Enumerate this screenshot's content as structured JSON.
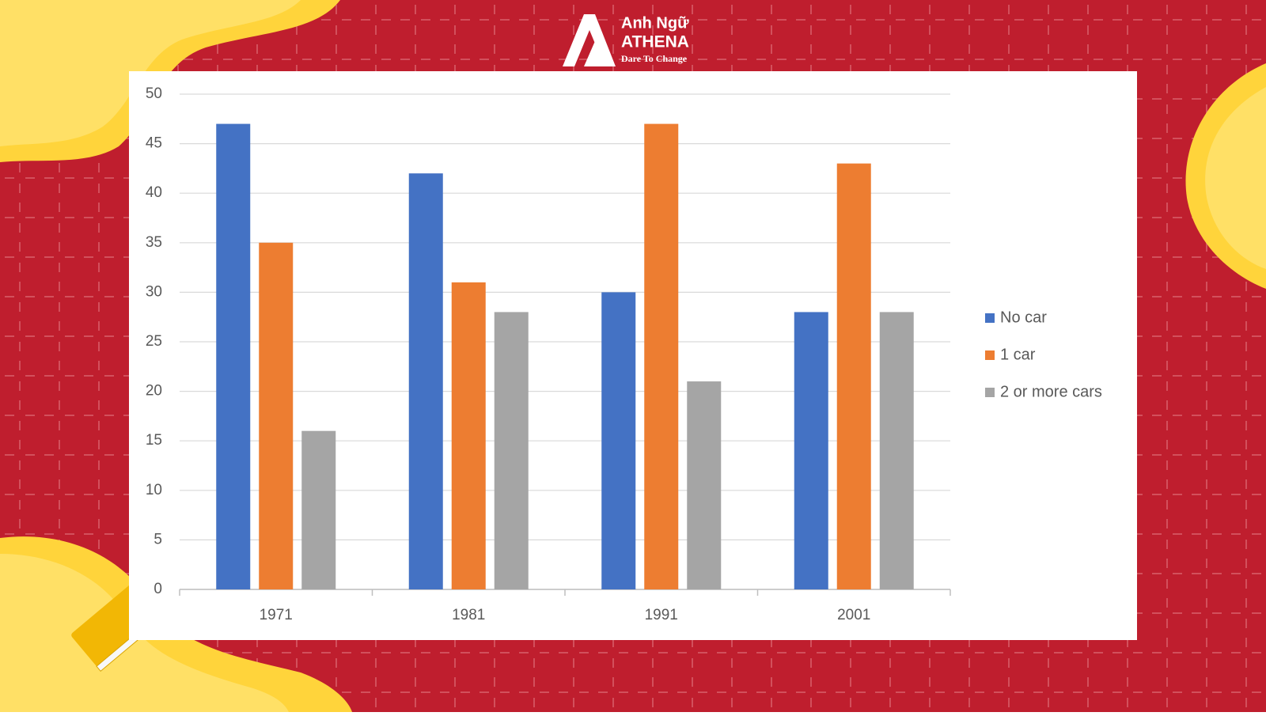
{
  "logo": {
    "line1": "Anh Ngữ",
    "line2": "ATHENA",
    "tagline": "Dare To Change"
  },
  "chart_data": {
    "type": "bar",
    "categories": [
      "1971",
      "1981",
      "1991",
      "2001"
    ],
    "series": [
      {
        "name": "No car",
        "color": "#4472c4",
        "values": [
          47,
          42,
          30,
          28
        ]
      },
      {
        "name": "1 car",
        "color": "#ed7d31",
        "values": [
          35,
          31,
          47,
          43
        ]
      },
      {
        "name": "2 or more cars",
        "color": "#a5a5a5",
        "values": [
          16,
          28,
          21,
          28
        ]
      }
    ],
    "ylim": [
      0,
      50
    ],
    "yticks": [
      0,
      5,
      10,
      15,
      20,
      25,
      30,
      35,
      40,
      45,
      50
    ],
    "grid": true,
    "legend": "right"
  }
}
